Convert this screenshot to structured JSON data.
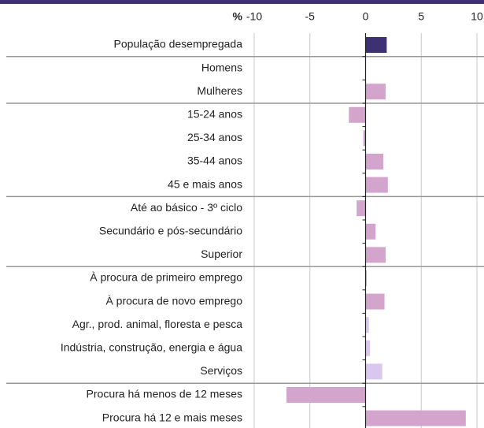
{
  "chart_data": {
    "type": "hbar",
    "axis_label": "%",
    "categories": [
      "População desempregada",
      "Homens",
      "Mulheres",
      "15-24 anos",
      "25-34 anos",
      "35-44 anos",
      "45 e mais anos",
      "Até ao básico - 3º ciclo",
      "Secundário e pós-secundário",
      "Superior",
      "À procura de primeiro emprego",
      "À procura de novo emprego",
      "Agr., prod. animal, floresta e pesca",
      "Indústria, construção, energia e água",
      "Serviços",
      "Procura há menos de 12 meses",
      "Procura há 12 e mais meses"
    ],
    "values": [
      1.9,
      0,
      1.8,
      -1.5,
      -0.2,
      1.6,
      2.0,
      -0.8,
      0.9,
      1.8,
      0.1,
      1.7,
      0.3,
      0.4,
      1.5,
      -7.1,
      9.0
    ],
    "colors": [
      "#3d3173",
      "#d4a5cc",
      "#d4a5cc",
      "#d4a5cc",
      "#d4a5cc",
      "#d4a5cc",
      "#d4a5cc",
      "#d4a5cc",
      "#d4a5cc",
      "#d4a5cc",
      "#d4a5cc",
      "#d4a5cc",
      "#d9c7f0",
      "#d9c7f0",
      "#d9c7f0",
      "#d4a5cc",
      "#d4a5cc"
    ],
    "xlim": [
      -10,
      10
    ],
    "xticks": [
      -10,
      -5,
      0,
      5,
      10
    ],
    "grid": true
  }
}
